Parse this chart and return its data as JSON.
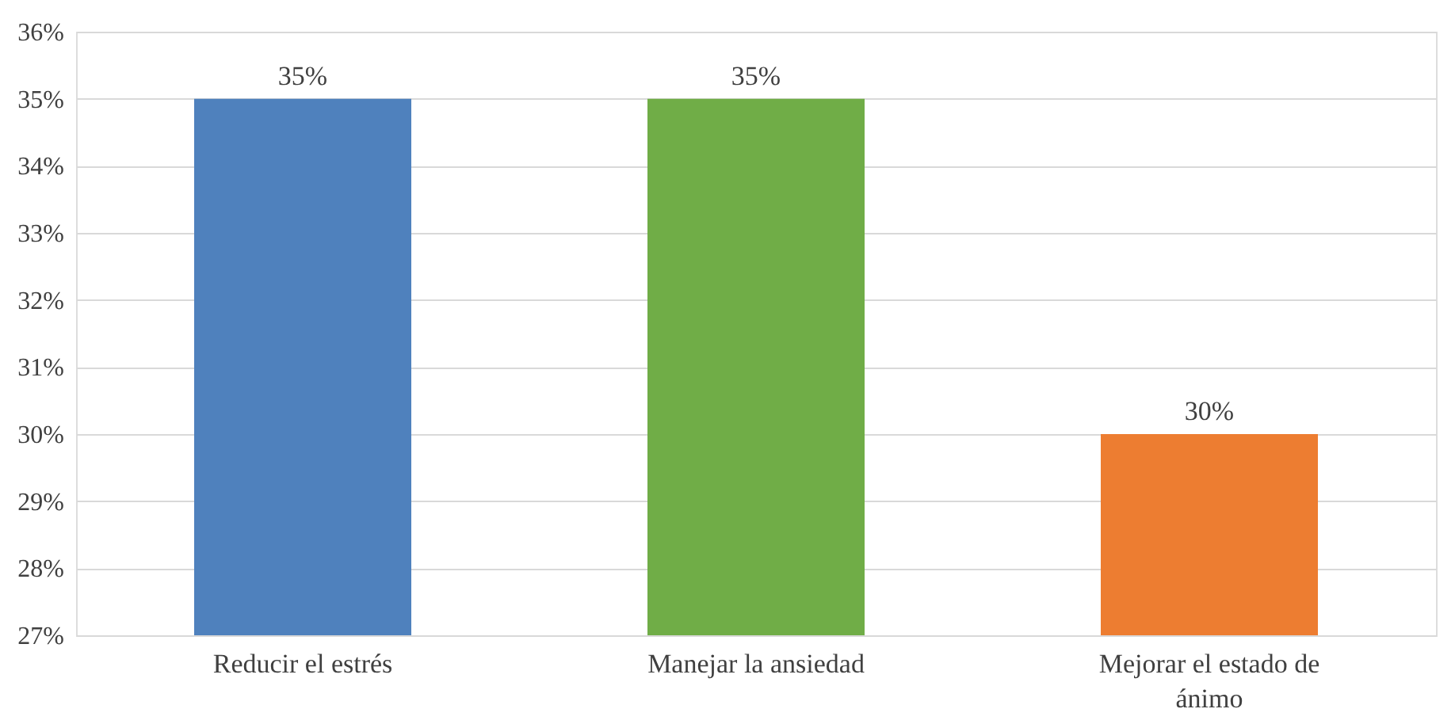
{
  "chart_data": {
    "type": "bar",
    "categories": [
      "Reducir el estrés",
      "Manejar la ansiedad",
      "Mejorar el estado de ánimo"
    ],
    "values": [
      35,
      35,
      30
    ],
    "colors": [
      "#4f81bd",
      "#70ad47",
      "#ed7d31"
    ],
    "value_labels": [
      "35%",
      "35%",
      "30%"
    ],
    "ylim": [
      27,
      36
    ],
    "yticks": [
      {
        "value": 27,
        "label": "27%"
      },
      {
        "value": 28,
        "label": "28%"
      },
      {
        "value": 29,
        "label": "29%"
      },
      {
        "value": 30,
        "label": "30%"
      },
      {
        "value": 31,
        "label": "31%"
      },
      {
        "value": 32,
        "label": "32%"
      },
      {
        "value": 33,
        "label": "33%"
      },
      {
        "value": 34,
        "label": "34%"
      },
      {
        "value": 35,
        "label": "35%"
      },
      {
        "value": 36,
        "label": "36%"
      }
    ],
    "grid": "y"
  }
}
